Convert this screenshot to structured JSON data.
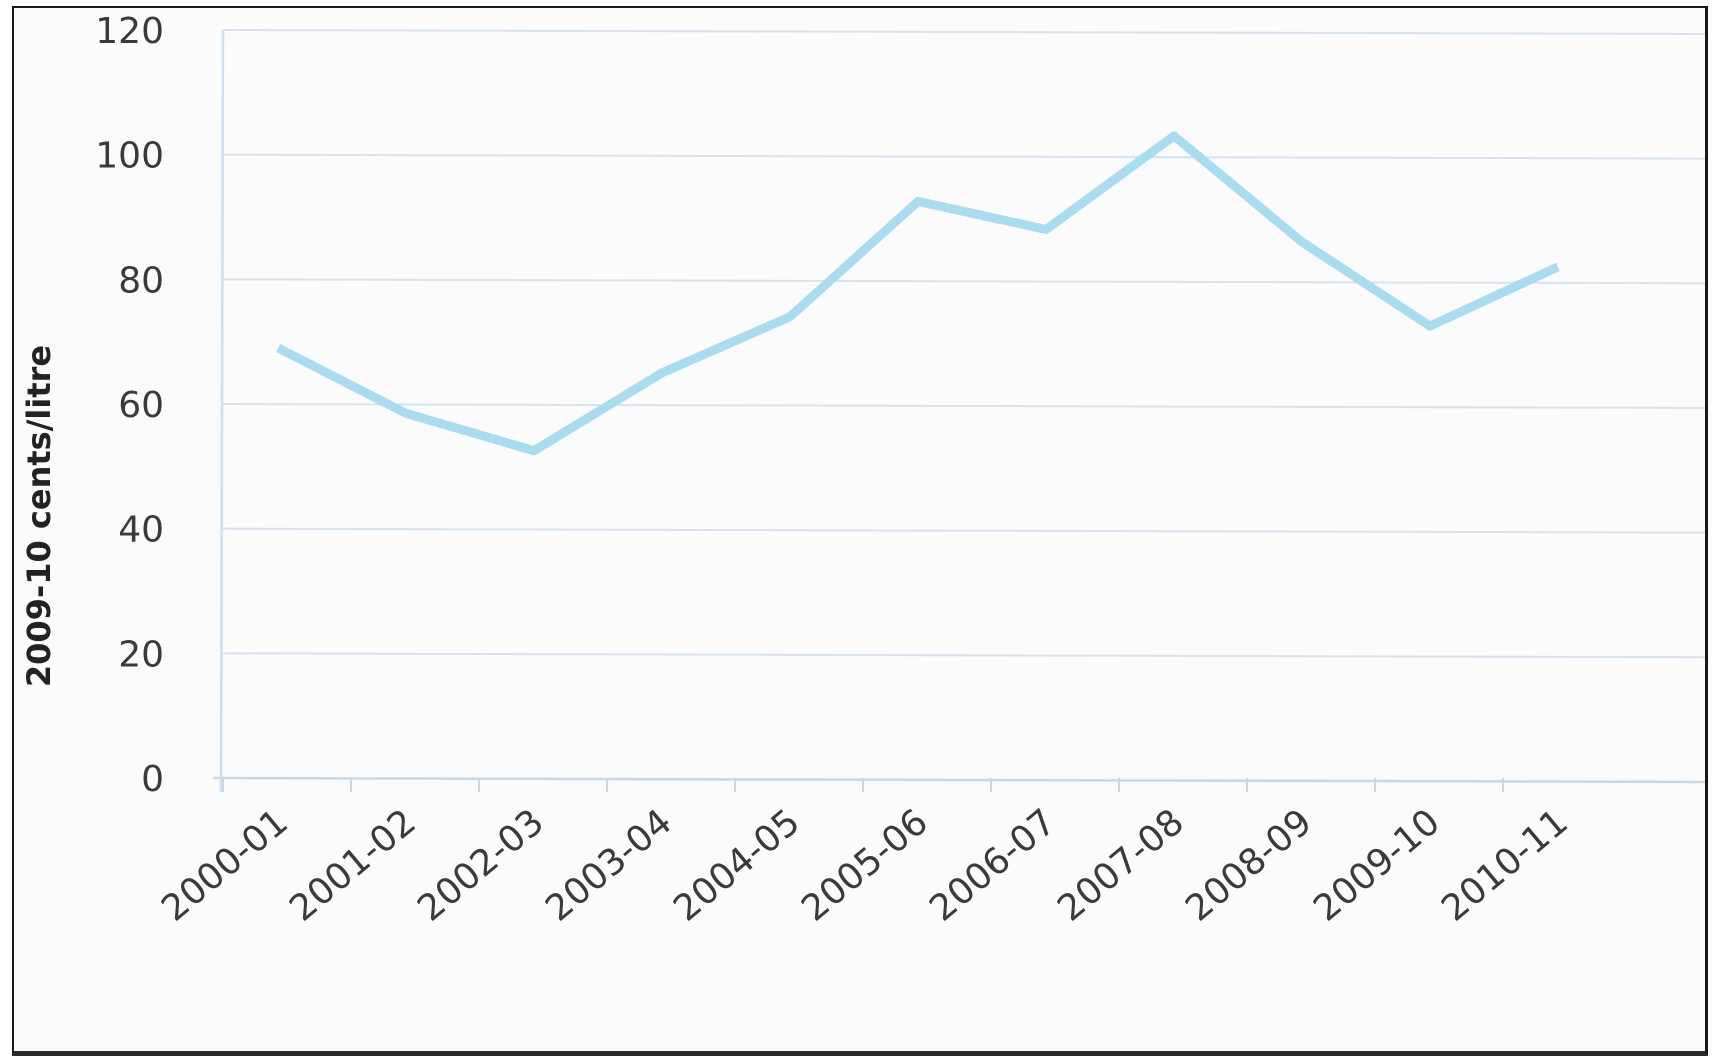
{
  "chart_data": {
    "type": "line",
    "title": "",
    "xlabel": "",
    "ylabel": "2009-10 cents/litre",
    "categories": [
      "2000-01",
      "2001-02",
      "2002-03",
      "2003-04",
      "2004-05",
      "2005-06",
      "2006-07",
      "2007-08",
      "2008-09",
      "2009-10",
      "2010-11"
    ],
    "yticks": [
      "0",
      "20",
      "40",
      "60",
      "80",
      "100",
      "120"
    ],
    "ylim": [
      0,
      120
    ],
    "grid": true,
    "legend": "none",
    "series": [
      {
        "color": "#a9dcef",
        "values": [
          69,
          58.5,
          52.5,
          65,
          74,
          92.5,
          88,
          103,
          86,
          72.5,
          82
        ]
      }
    ]
  }
}
